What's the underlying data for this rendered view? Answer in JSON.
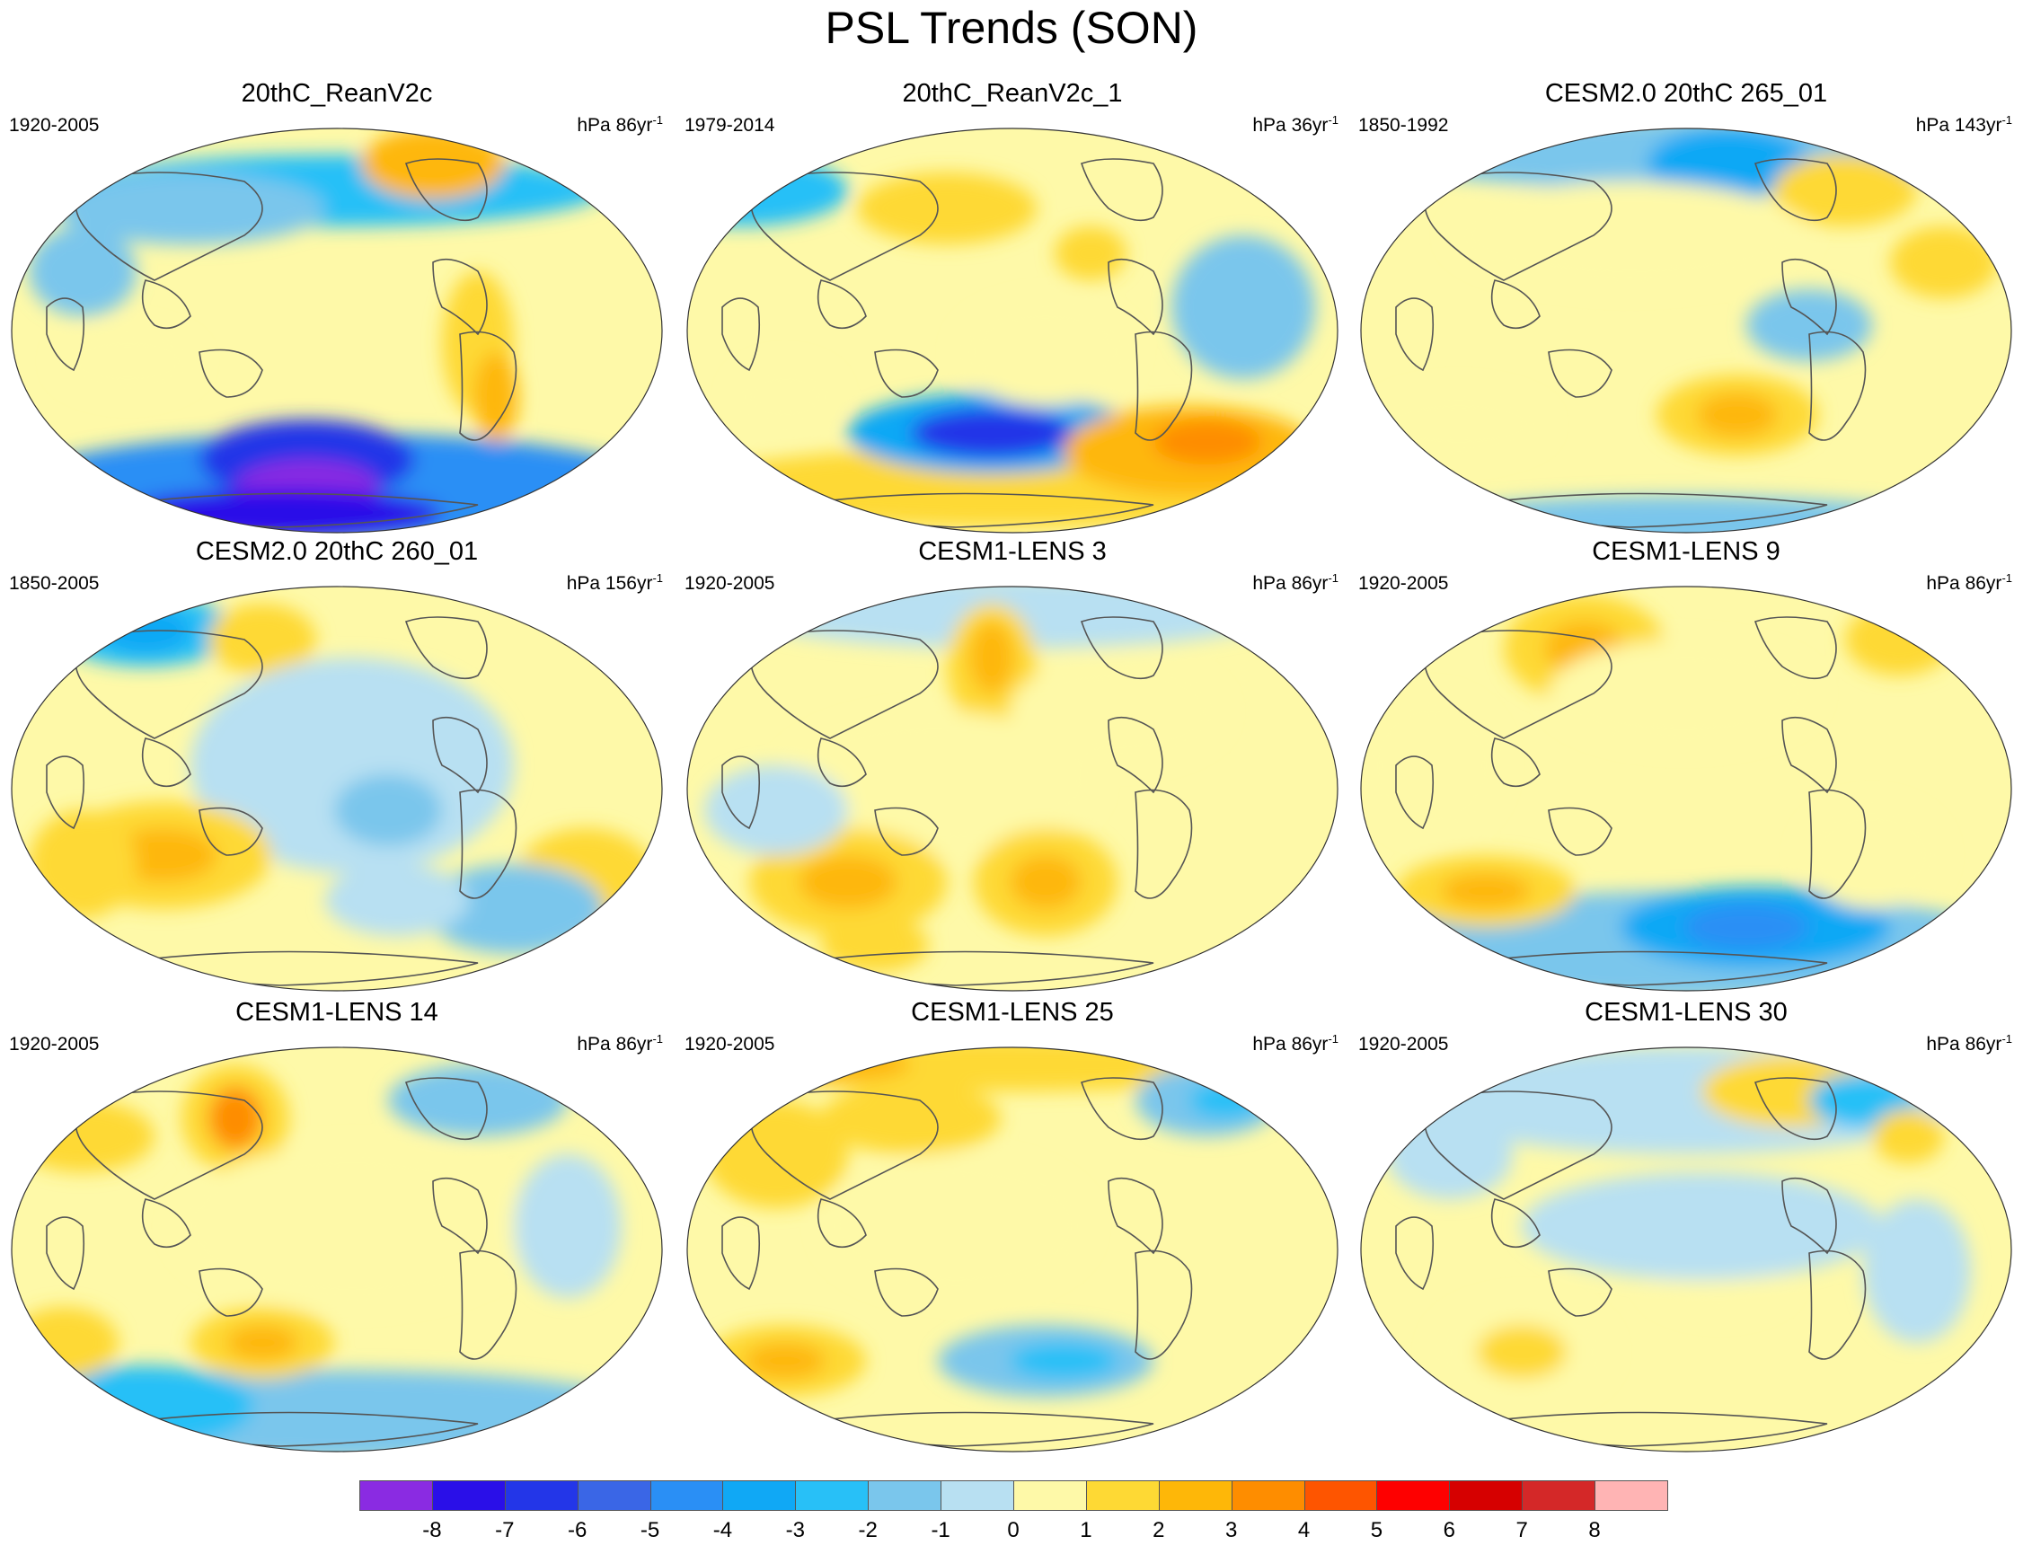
{
  "figure_title": "PSL Trends (SON)",
  "units_prefix": "hPa",
  "panels": [
    {
      "title": "20thC_ReanV2c",
      "years": "1920-2005",
      "trend": "86yr",
      "exp": "-1"
    },
    {
      "title": "20thC_ReanV2c_1",
      "years": "1979-2014",
      "trend": "36yr",
      "exp": "-1"
    },
    {
      "title": "CESM2.0 20thC 265_01",
      "years": "1850-1992",
      "trend": "143yr",
      "exp": "-1"
    },
    {
      "title": "CESM2.0 20thC 260_01",
      "years": "1850-2005",
      "trend": "156yr",
      "exp": "-1"
    },
    {
      "title": "CESM1-LENS 3",
      "years": "1920-2005",
      "trend": "86yr",
      "exp": "-1"
    },
    {
      "title": "CESM1-LENS 9",
      "years": "1920-2005",
      "trend": "86yr",
      "exp": "-1"
    },
    {
      "title": "CESM1-LENS 14",
      "years": "1920-2005",
      "trend": "86yr",
      "exp": "-1"
    },
    {
      "title": "CESM1-LENS 25",
      "years": "1920-2005",
      "trend": "86yr",
      "exp": "-1"
    },
    {
      "title": "CESM1-LENS 30",
      "years": "1920-2005",
      "trend": "86yr",
      "exp": "-1"
    }
  ],
  "colorbar": {
    "labels": [
      "-8",
      "-7",
      "-6",
      "-5",
      "-4",
      "-3",
      "-2",
      "-1",
      "0",
      "1",
      "2",
      "3",
      "4",
      "5",
      "6",
      "7",
      "8"
    ],
    "colors": [
      "#8a2be2",
      "#2a0fe8",
      "#2336e8",
      "#3a66e6",
      "#2a8ff5",
      "#10a8f5",
      "#28c0f7",
      "#7ac6ec",
      "#b8e0f2",
      "#fef9a8",
      "#fed934",
      "#feb708",
      "#fe8d00",
      "#fe5500",
      "#fe0000",
      "#d60000",
      "#d42828",
      "#ffb4b4"
    ]
  },
  "colors": {
    "land_outline": "#555555",
    "neutral_negative": "#b8e0f2",
    "neutral_positive": "#fef9a8"
  }
}
